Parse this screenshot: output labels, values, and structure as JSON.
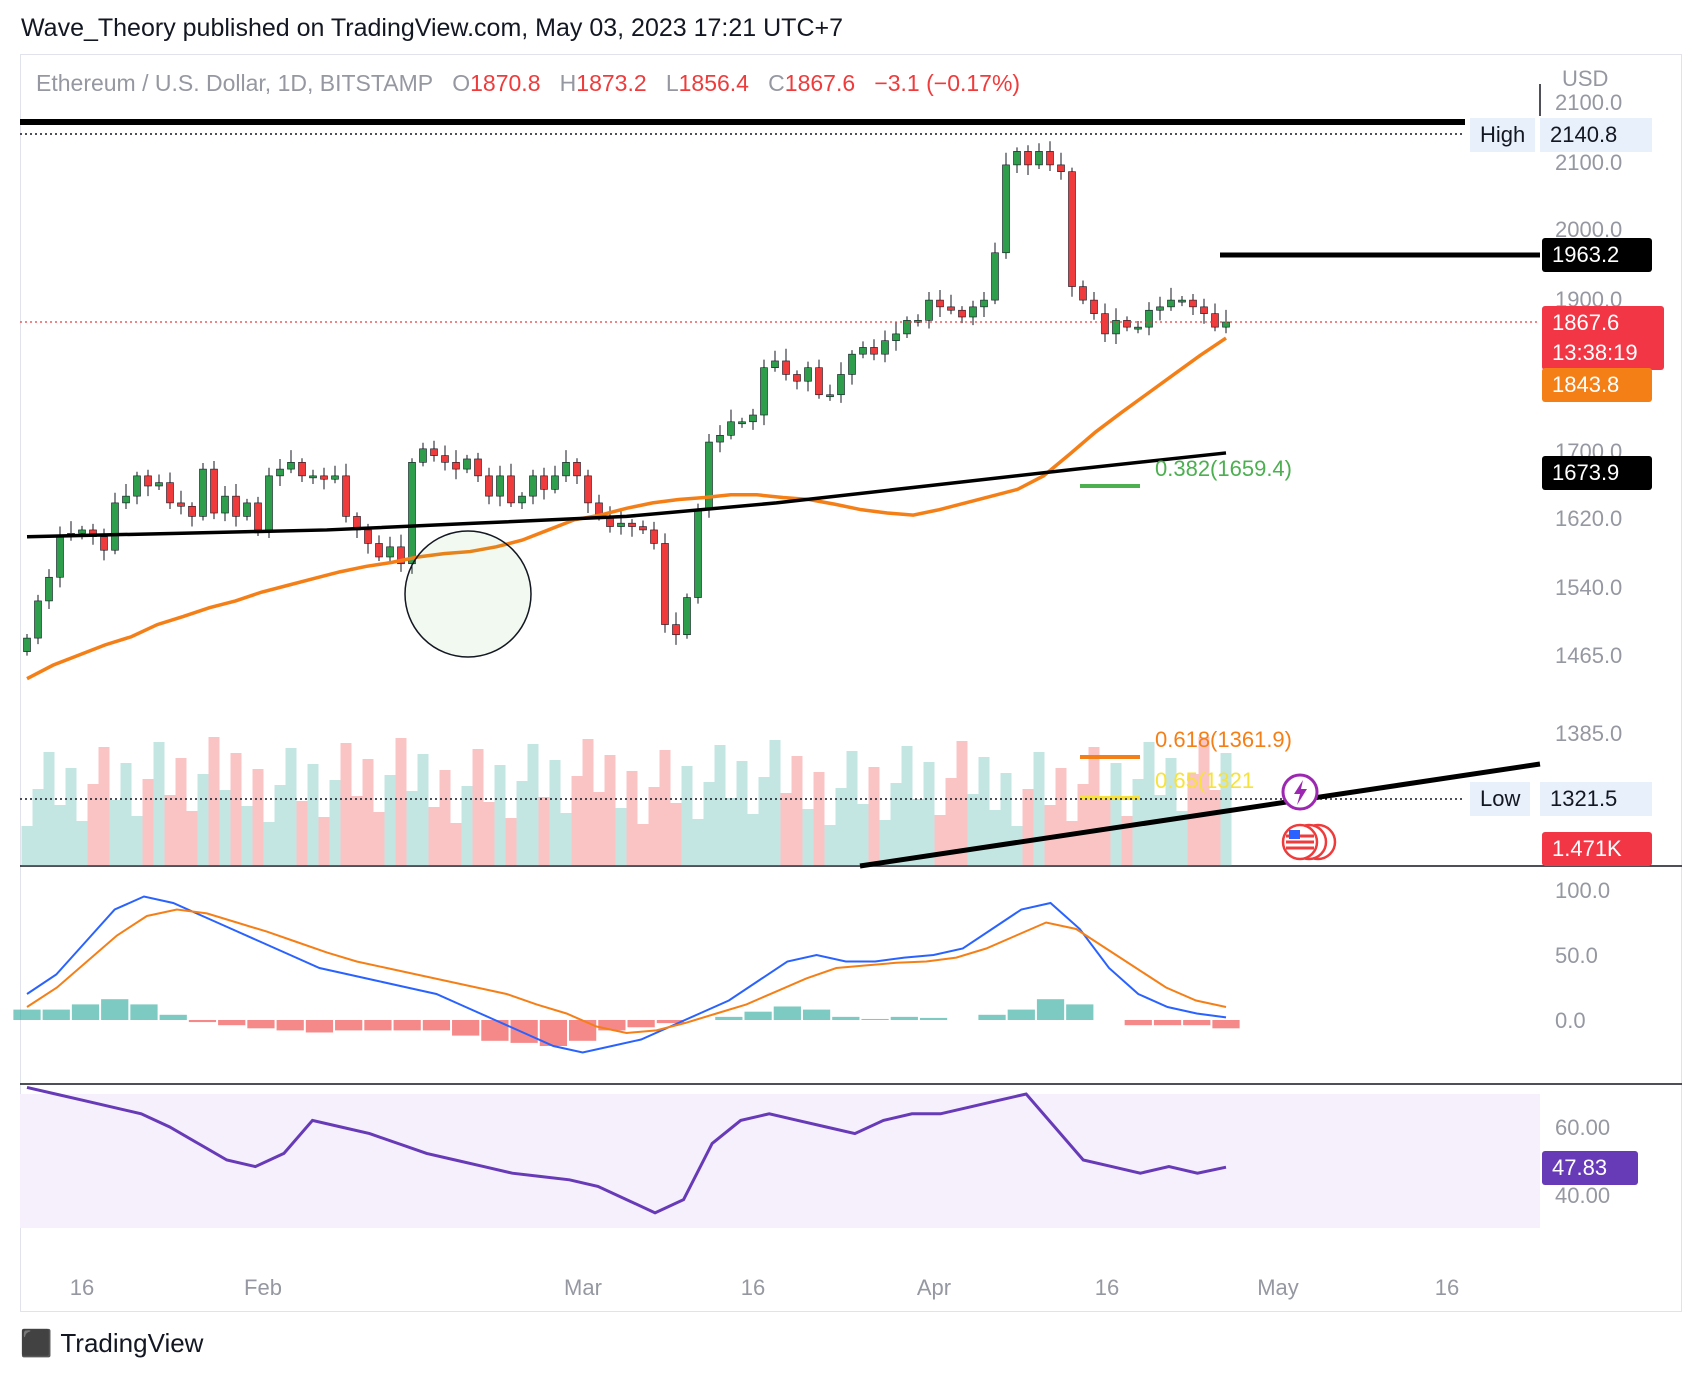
{
  "publisher": "Wave_Theory published on TradingView.com, May 03, 2023 17:21 UTC+7",
  "header": {
    "symbol": "Ethereum / U.S. Dollar, 1D, BITSTAMP",
    "o_label": "O",
    "o_value": "1870.8",
    "h_label": "H",
    "h_value": "1873.2",
    "l_label": "L",
    "l_value": "1856.4",
    "c_label": "C",
    "c_value": "1867.6",
    "change": "−3.1 (−0.17%)"
  },
  "axis": {
    "currency": "USD",
    "price_ticks": [
      "2100.0",
      "2000.0",
      "1900.0",
      "1700.0",
      "1620.0",
      "1540.0",
      "1465.0",
      "1385.0"
    ],
    "overlapped_ticks": [
      "2100.0"
    ],
    "macd_ticks": [
      "100.0",
      "50.0",
      "0.0"
    ],
    "rsi_ticks": [
      "60.00",
      "40.00"
    ],
    "time_ticks": [
      "16",
      "Feb",
      "Mar",
      "16",
      "Apr",
      "16",
      "May",
      "16"
    ]
  },
  "tags": {
    "high_label": "High",
    "high_value": "2140.8",
    "low_label": "Low",
    "low_value": "1321.5",
    "resistance": "1963.2",
    "last_price": "1867.6",
    "countdown": "13:38:19",
    "ema50": "1843.8",
    "ma200": "1673.9",
    "volume": "1.471K",
    "rsi": "47.83"
  },
  "fib": {
    "f382": "0.382(1659.4)",
    "f618": "0.618(1361.9)",
    "f65": "0.65(1321"
  },
  "footer": {
    "brand": "TradingView"
  },
  "colors": {
    "up": "#26a69a",
    "up_candle": "#2e9e4d",
    "down": "#ef3b3b",
    "ema": "#f57f17",
    "ma200": "#000000",
    "macd": "#2962ff",
    "signal": "#f57f17",
    "rsi": "#673ab7",
    "rsi_band": "#f5f0fb",
    "fib382": "#4caf50",
    "fib618": "#f57f17",
    "fib65": "#f7e23b"
  },
  "chart_data": [
    {
      "type": "candlestick",
      "title": "Ethereum / U.S. Dollar, 1D, BITSTAMP",
      "ylabel": "USD",
      "ylim": [
        1300,
        2170
      ],
      "x_ticks": [
        "16",
        "Feb",
        "Mar",
        "16",
        "Apr",
        "16",
        "May",
        "16"
      ],
      "levels": {
        "high": 2140.8,
        "low": 1321.5,
        "resistance": 1963.2,
        "last": 1867.6,
        "ema50": 1843.8,
        "ma200": 1673.9
      },
      "fibonacci": [
        {
          "label": "0.382(1659.4)",
          "value": 1659.4
        },
        {
          "label": "0.618(1361.9)",
          "value": 1361.9
        },
        {
          "label": "0.65(1321",
          "value": 1321
        }
      ],
      "closes": [
        1400,
        1455,
        1490,
        1550,
        1555,
        1560,
        1550,
        1530,
        1600,
        1610,
        1640,
        1625,
        1630,
        1600,
        1595,
        1580,
        1650,
        1585,
        1610,
        1580,
        1600,
        1560,
        1640,
        1650,
        1660,
        1640,
        1640,
        1635,
        1640,
        1580,
        1560,
        1540,
        1520,
        1535,
        1510,
        1660,
        1680,
        1670,
        1660,
        1650,
        1665,
        1640,
        1610,
        1640,
        1600,
        1610,
        1640,
        1620,
        1640,
        1660,
        1640,
        1600,
        1580,
        1565,
        1570,
        1565,
        1560,
        1540,
        1420,
        1405,
        1460,
        1590,
        1690,
        1700,
        1720,
        1720,
        1730,
        1800,
        1810,
        1790,
        1780,
        1800,
        1760,
        1760,
        1790,
        1820,
        1830,
        1820,
        1840,
        1850,
        1870,
        1870,
        1900,
        1890,
        1885,
        1875,
        1890,
        1900,
        1970,
        2100,
        2120,
        2100,
        2120,
        2100,
        2090,
        1920,
        1900,
        1880,
        1850,
        1870,
        1860,
        1860,
        1885,
        1890,
        1900,
        1900,
        1890,
        1880,
        1860,
        1867.6
      ],
      "ema50_series": [
        1340,
        1360,
        1375,
        1390,
        1402,
        1420,
        1432,
        1445,
        1455,
        1468,
        1478,
        1488,
        1498,
        1506,
        1512,
        1520,
        1525,
        1528,
        1535,
        1545,
        1560,
        1575,
        1582,
        1592,
        1600,
        1605,
        1608,
        1612,
        1612,
        1608,
        1605,
        1598,
        1590,
        1585,
        1582,
        1590,
        1600,
        1610,
        1620,
        1640,
        1672,
        1705,
        1734,
        1762,
        1790,
        1818,
        1843.8
      ],
      "ma200_series": [
        1650,
        1660,
        1663,
        1673.9
      ],
      "volume": {
        "last": "1.471K"
      }
    },
    {
      "type": "line",
      "title": "MACD",
      "ylim": [
        -30,
        110
      ],
      "series": [
        {
          "values": [
            20,
            35,
            60,
            85,
            95,
            90,
            80,
            70,
            60,
            50,
            40,
            35,
            30,
            25,
            20,
            10,
            0,
            -10,
            -20,
            -25,
            -20,
            -15,
            -5,
            5,
            15,
            30,
            45,
            50,
            45,
            45,
            48,
            50,
            55,
            70,
            85,
            90,
            70,
            40,
            20,
            10,
            5,
            2
          ]
        },
        {
          "values": [
            10,
            25,
            45,
            65,
            80,
            85,
            82,
            75,
            68,
            60,
            52,
            45,
            40,
            35,
            30,
            25,
            20,
            12,
            5,
            -5,
            -10,
            -8,
            -2,
            5,
            12,
            22,
            32,
            40,
            42,
            44,
            45,
            48,
            55,
            65,
            75,
            70,
            55,
            40,
            25,
            15,
            10
          ]
        }
      ]
    },
    {
      "type": "line",
      "title": "RSI",
      "ylim": [
        30,
        80
      ],
      "series": [
        {
          "values": [
            72,
            70,
            68,
            66,
            64,
            60,
            55,
            50,
            48,
            52,
            62,
            60,
            58,
            55,
            52,
            50,
            48,
            46,
            45,
            44,
            42,
            38,
            34,
            38,
            55,
            62,
            64,
            62,
            60,
            58,
            62,
            64,
            64,
            66,
            68,
            70,
            60,
            50,
            48,
            46,
            48,
            46,
            47.83
          ]
        }
      ],
      "last": 47.83
    }
  ]
}
